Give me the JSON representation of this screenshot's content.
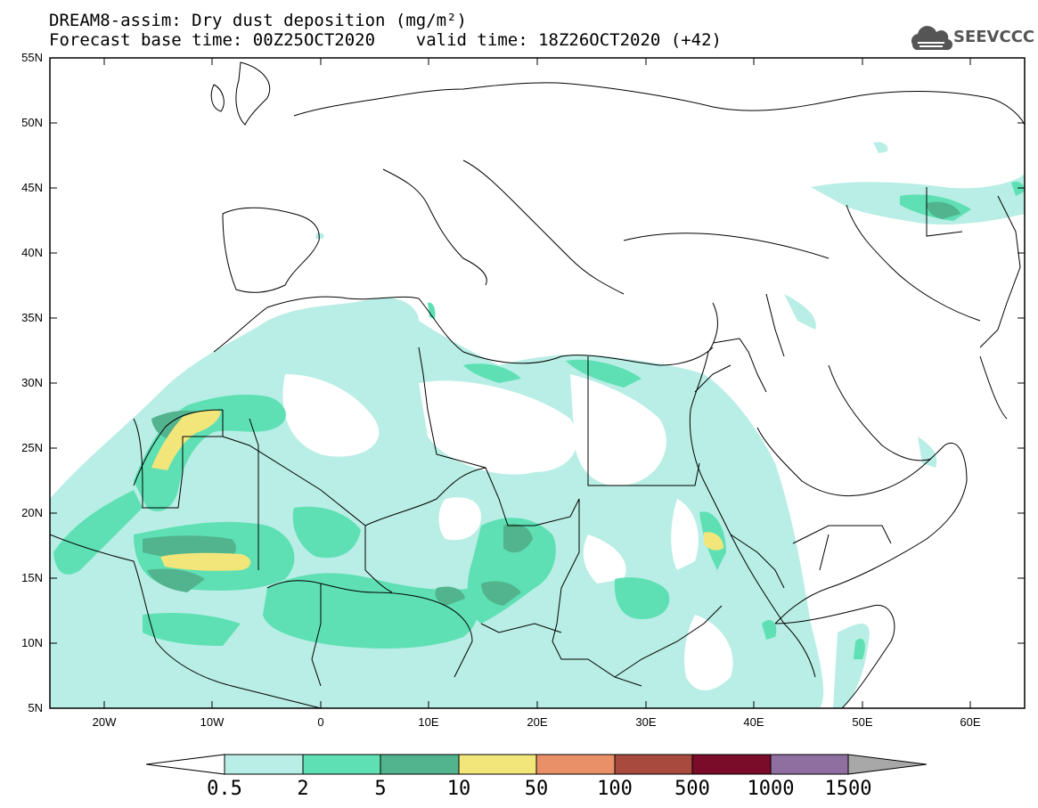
{
  "title": {
    "line1": "DREAM8-assim: Dry dust deposition (mg/m²)",
    "line2": "Forecast base time: 00Z25OCT2020    valid time: 18Z26OCT2020 (+42)"
  },
  "logo": {
    "text": "SEEVCCC",
    "icon": "cloud-icon"
  },
  "axes": {
    "lat_labels": [
      "55N",
      "50N",
      "45N",
      "40N",
      "35N",
      "30N",
      "25N",
      "20N",
      "15N",
      "10N",
      "5N"
    ],
    "lon_labels": [
      "20W",
      "10W",
      "0",
      "10E",
      "20E",
      "30E",
      "40E",
      "50E",
      "60E"
    ]
  },
  "colorbar": {
    "labels": [
      "0.5",
      "2",
      "5",
      "10",
      "50",
      "100",
      "500",
      "1000",
      "1500"
    ],
    "colors": [
      "#ffffff",
      "#b8eee5",
      "#5ee0b4",
      "#52b48e",
      "#f2e67a",
      "#e99068",
      "#a94a3e",
      "#7a0c2a",
      "#8f6ea0",
      "#a8a8a8"
    ]
  }
}
